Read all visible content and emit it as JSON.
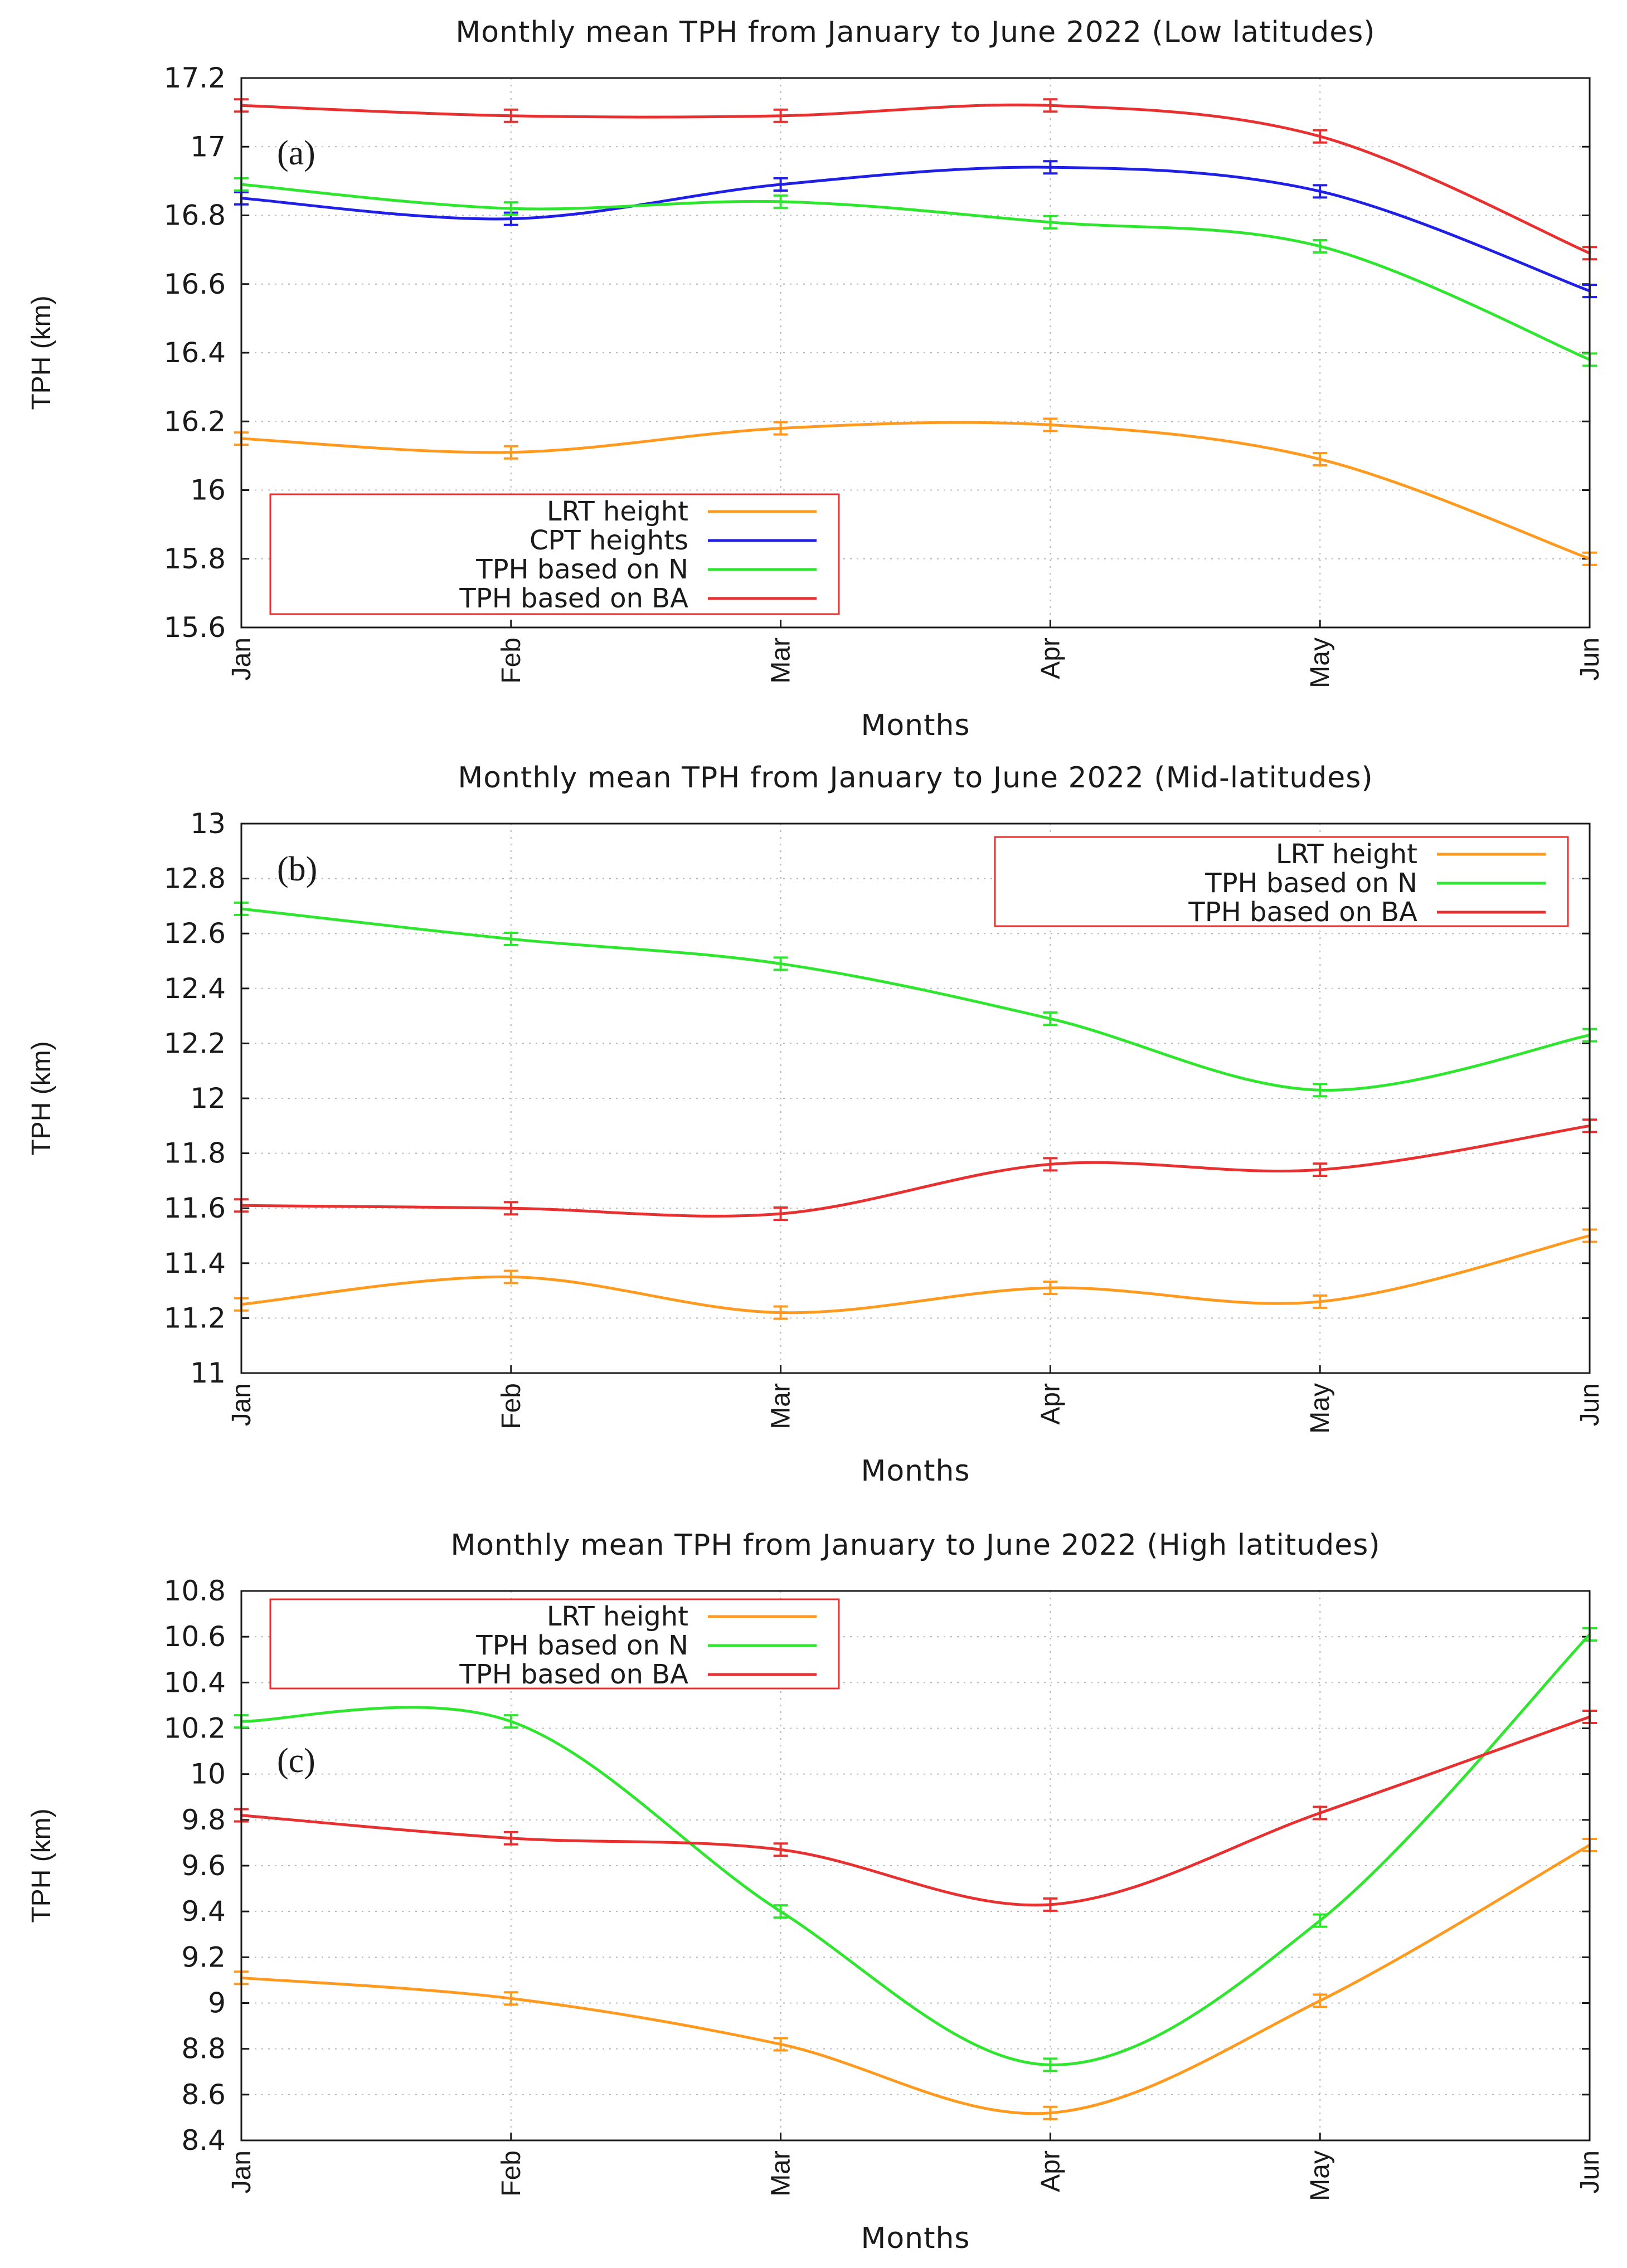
{
  "chart_data": [
    {
      "type": "line",
      "panel_label": "(a)",
      "title": "Monthly mean TPH from January to June 2022 (Low latitudes)",
      "xlabel": "Months",
      "ylabel": "TPH (km)",
      "categories": [
        "Jan",
        "Feb",
        "Mar",
        "Apr",
        "May",
        "Jun"
      ],
      "ylim": [
        15.6,
        17.2
      ],
      "ytick_step": 0.2,
      "yticks": [
        "15.6",
        "15.8",
        "16",
        "16.2",
        "16.4",
        "16.6",
        "16.8",
        "17",
        "17.2"
      ],
      "grid": true,
      "legend_position": "bottom-left",
      "series": [
        {
          "name": "LRT height",
          "color": "#ff9a1f",
          "values": [
            16.15,
            16.11,
            16.18,
            16.19,
            16.09,
            15.8
          ]
        },
        {
          "name": "CPT heights",
          "color": "#1f1fe6",
          "values": [
            16.85,
            16.79,
            16.89,
            16.94,
            16.87,
            16.58
          ]
        },
        {
          "name": "TPH based on N",
          "color": "#2ee62e",
          "values": [
            16.89,
            16.82,
            16.84,
            16.78,
            16.71,
            16.38
          ]
        },
        {
          "name": "TPH based on BA",
          "color": "#e83030",
          "values": [
            17.12,
            17.09,
            17.09,
            17.12,
            17.03,
            16.69
          ]
        }
      ]
    },
    {
      "type": "line",
      "panel_label": "(b)",
      "title": "Monthly mean TPH from January to June 2022 (Mid-latitudes)",
      "xlabel": "Months",
      "ylabel": "TPH (km)",
      "categories": [
        "Jan",
        "Feb",
        "Mar",
        "Apr",
        "May",
        "Jun"
      ],
      "ylim": [
        11,
        13
      ],
      "ytick_step": 0.2,
      "yticks": [
        "11",
        "11.2",
        "11.4",
        "11.6",
        "11.8",
        "12",
        "12.2",
        "12.4",
        "12.6",
        "12.8",
        "13"
      ],
      "grid": true,
      "legend_position": "top-right",
      "series": [
        {
          "name": "LRT height",
          "color": "#ff9a1f",
          "values": [
            11.25,
            11.35,
            11.22,
            11.31,
            11.26,
            11.5
          ]
        },
        {
          "name": "TPH based on N",
          "color": "#2ee62e",
          "values": [
            12.69,
            12.58,
            12.49,
            12.29,
            12.03,
            12.23
          ]
        },
        {
          "name": "TPH based on BA",
          "color": "#e83030",
          "values": [
            11.61,
            11.6,
            11.58,
            11.76,
            11.74,
            11.9
          ]
        }
      ]
    },
    {
      "type": "line",
      "panel_label": "(c)",
      "title": "Monthly mean TPH from January to June 2022 (High latitudes)",
      "xlabel": "Months",
      "ylabel": "TPH (km)",
      "categories": [
        "Jan",
        "Feb",
        "Mar",
        "Apr",
        "May",
        "Jun"
      ],
      "ylim": [
        8.4,
        10.8
      ],
      "ytick_step": 0.2,
      "yticks": [
        "8.4",
        "8.6",
        "8.8",
        "9",
        "9.2",
        "9.4",
        "9.6",
        "9.8",
        "10",
        "10.2",
        "10.4",
        "10.6",
        "10.8"
      ],
      "grid": true,
      "legend_position": "top-left",
      "series": [
        {
          "name": "LRT height",
          "color": "#ff9a1f",
          "values": [
            9.11,
            9.02,
            8.82,
            8.52,
            9.01,
            9.69
          ]
        },
        {
          "name": "TPH based on N",
          "color": "#2ee62e",
          "values": [
            10.23,
            10.23,
            9.4,
            8.73,
            9.36,
            10.61
          ]
        },
        {
          "name": "TPH based on BA",
          "color": "#e83030",
          "values": [
            9.82,
            9.72,
            9.67,
            9.43,
            9.83,
            10.25
          ]
        }
      ]
    }
  ]
}
